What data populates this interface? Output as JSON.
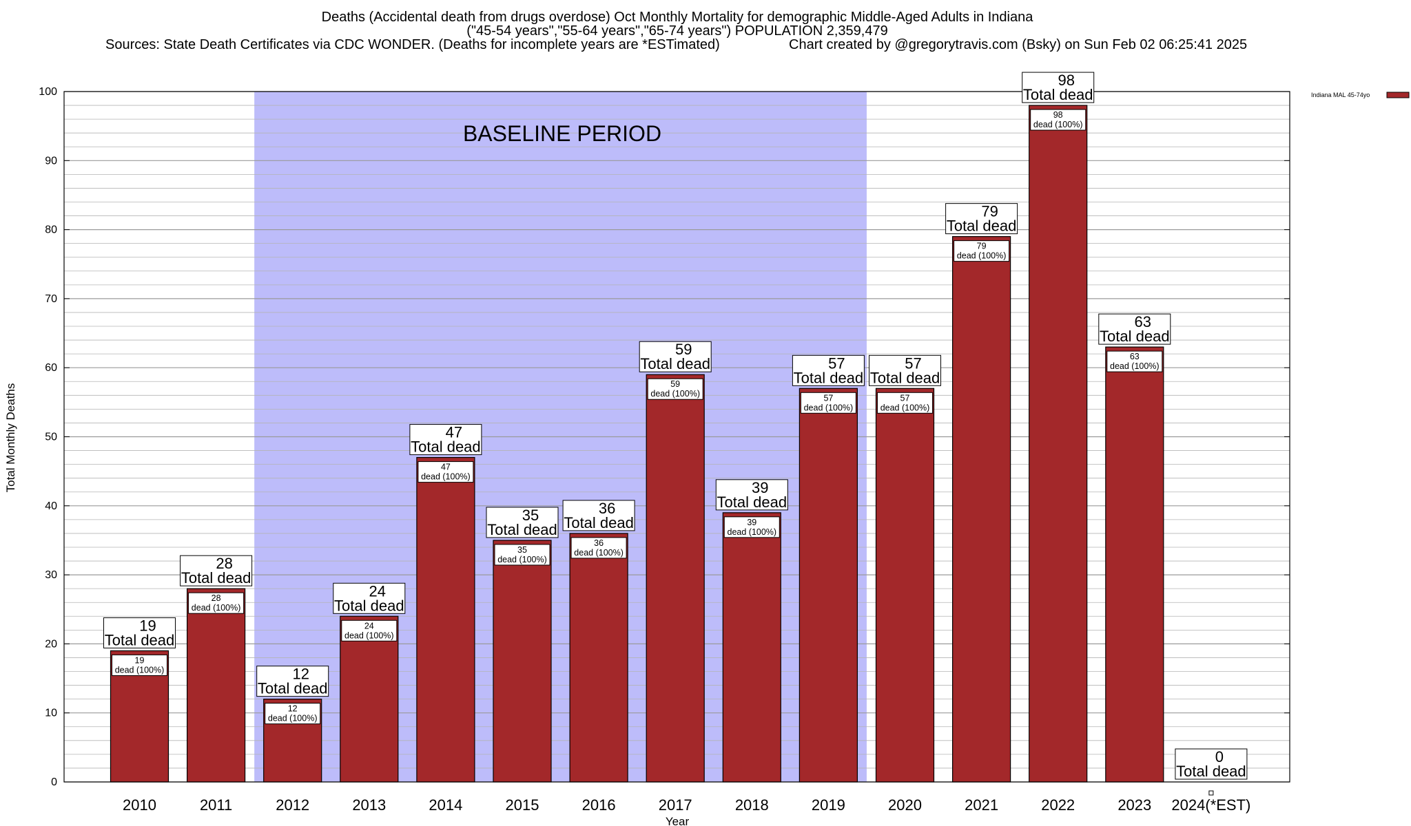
{
  "title_lines": [
    "Deaths (Accidental death from drugs overdose) Oct Monthly Mortality for demographic Middle-Aged Adults in Indiana",
    "(\"45-54 years\",\"55-64 years\",\"65-74 years\") POPULATION 2,359,479",
    "Sources: State Death Certificates via CDC WONDER. (Deaths for incomplete years are *ESTimated)",
    "Chart created by @gregorytravis.com (Bsky) on Sun Feb 02 06:25:41 2025"
  ],
  "colors": {
    "bar": "#a3282a",
    "baseline_shade": "#bdbcfa",
    "grid": "#b4b4b4"
  },
  "baseline": {
    "label": "BASELINE PERIOD",
    "start_category": "2012",
    "end_category": "2019"
  },
  "callout_label": "Total dead",
  "inner_label": "dead (100%)",
  "chart_data": {
    "type": "bar",
    "title": "Deaths (Accidental death from drugs overdose) Oct Monthly Mortality for demographic Middle-Aged Adults in Indiana",
    "xlabel": "Year",
    "ylabel": "Total Monthly Deaths",
    "categories": [
      "2010",
      "2011",
      "2012",
      "2013",
      "2014",
      "2015",
      "2016",
      "2017",
      "2018",
      "2019",
      "2020",
      "2021",
      "2022",
      "2023",
      "2024(*EST)"
    ],
    "series": [
      {
        "name": "Indiana MAL 45-74yo",
        "values": [
          19,
          28,
          12,
          24,
          47,
          35,
          36,
          59,
          39,
          57,
          57,
          79,
          98,
          63,
          0
        ]
      }
    ],
    "ylim": [
      0,
      100
    ],
    "yticks": [
      0,
      10,
      20,
      30,
      40,
      50,
      60,
      70,
      80,
      90,
      100
    ],
    "grid": true,
    "legend_position": "top-right"
  }
}
